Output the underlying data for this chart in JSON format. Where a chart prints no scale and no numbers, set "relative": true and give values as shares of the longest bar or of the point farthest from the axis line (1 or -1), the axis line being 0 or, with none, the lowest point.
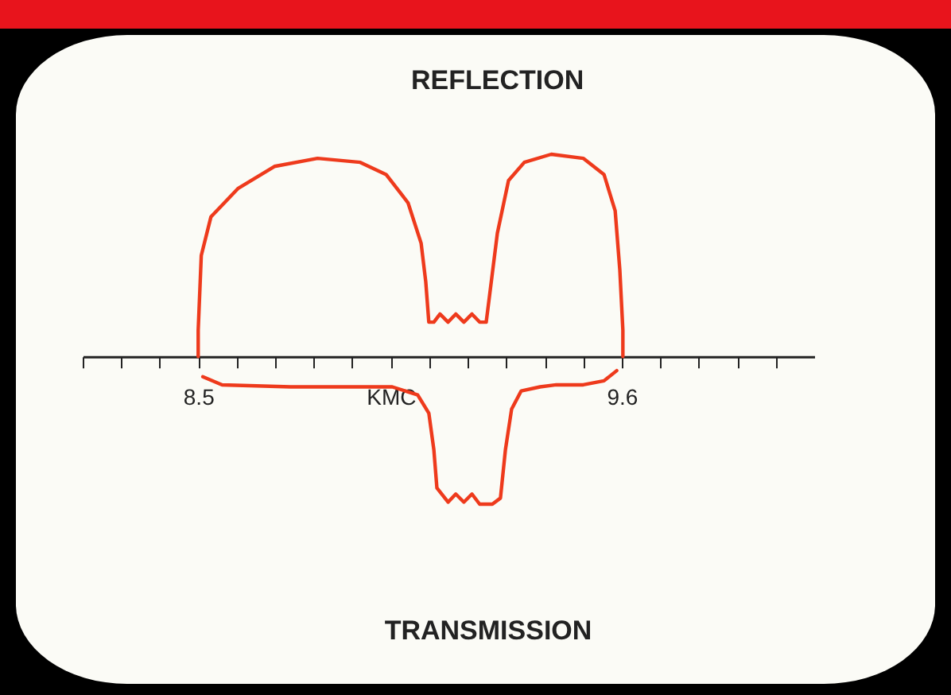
{
  "chart_data": {
    "type": "line",
    "title": "REFLECTION",
    "annotations": [
      "TRANSMISSION"
    ],
    "relative": true,
    "xlim": [
      8.2,
      10.1
    ],
    "xticks": [
      {
        "value": 8.2,
        "label": null
      },
      {
        "value": 8.3,
        "label": null
      },
      {
        "value": 8.4,
        "label": null
      },
      {
        "value": 8.5,
        "label": "8.5"
      },
      {
        "value": 8.6,
        "label": null
      },
      {
        "value": 8.7,
        "label": null
      },
      {
        "value": 8.8,
        "label": null
      },
      {
        "value": 8.9,
        "label": null
      },
      {
        "value": 9.0,
        "label": "KMC"
      },
      {
        "value": 9.1,
        "label": null
      },
      {
        "value": 9.2,
        "label": null
      },
      {
        "value": 9.3,
        "label": null
      },
      {
        "value": 9.4,
        "label": null
      },
      {
        "value": 9.5,
        "label": null
      },
      {
        "value": 9.6,
        "label": "9.6"
      },
      {
        "value": 9.7,
        "label": null
      },
      {
        "value": 9.8,
        "label": null
      },
      {
        "value": 9.9,
        "label": null
      },
      {
        "value": 10.0,
        "label": null
      }
    ],
    "series": [
      {
        "color": "#ee3a1c",
        "x": [
          8.5,
          8.5,
          8.508,
          8.533,
          8.603,
          8.698,
          8.81,
          8.921,
          8.988,
          9.045,
          9.079,
          9.091,
          9.099,
          9.112,
          9.128,
          9.149,
          9.169,
          9.19,
          9.211,
          9.231,
          9.248,
          9.256,
          9.277,
          9.306,
          9.347,
          9.417,
          9.5,
          9.554,
          9.583,
          9.595,
          9.603,
          9.603
        ],
        "values": [
          0,
          0.13,
          0.5,
          0.69,
          0.83,
          0.94,
          0.98,
          0.96,
          0.9,
          0.76,
          0.56,
          0.37,
          0.17,
          0.17,
          0.21,
          0.17,
          0.21,
          0.17,
          0.21,
          0.17,
          0.17,
          0.29,
          0.61,
          0.87,
          0.96,
          1.0,
          0.98,
          0.9,
          0.72,
          0.43,
          0.13,
          0
        ]
      },
      {
        "color": "#ee3a1c",
        "x": [
          8.512,
          8.562,
          8.74,
          9.004,
          9.07,
          9.099,
          9.112,
          9.12,
          9.149,
          9.169,
          9.19,
          9.211,
          9.231,
          9.264,
          9.285,
          9.298,
          9.314,
          9.339,
          9.388,
          9.43,
          9.5,
          9.554,
          9.587
        ],
        "values": [
          -0.1,
          -0.14,
          -0.15,
          -0.15,
          -0.19,
          -0.28,
          -0.46,
          -0.65,
          -0.72,
          -0.68,
          -0.72,
          -0.68,
          -0.73,
          -0.73,
          -0.7,
          -0.46,
          -0.26,
          -0.17,
          -0.15,
          -0.14,
          -0.14,
          -0.12,
          -0.07
        ]
      }
    ]
  }
}
